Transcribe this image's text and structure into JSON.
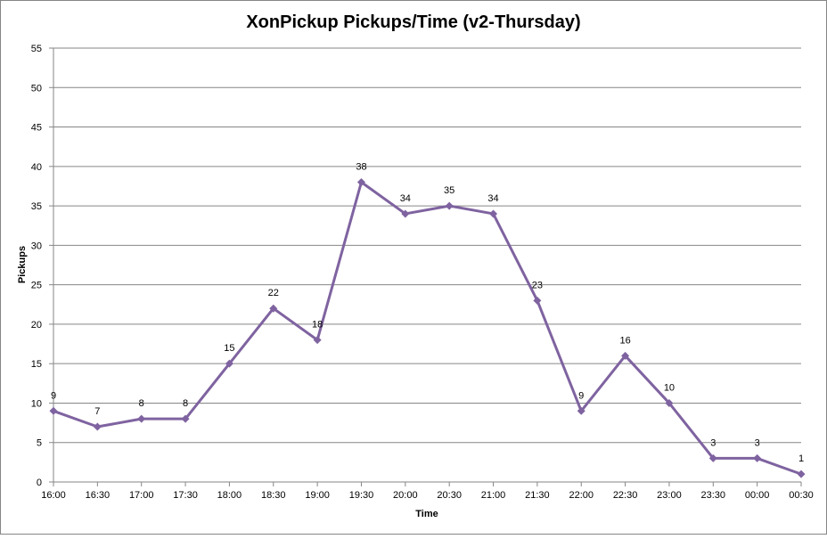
{
  "chart_data": {
    "type": "line",
    "title": "XonPickup Pickups/Time (v2-Thursday)",
    "xlabel": "Time",
    "ylabel": "Pickups",
    "categories": [
      "16:00",
      "16:30",
      "17:00",
      "17:30",
      "18:00",
      "18:30",
      "19:00",
      "19:30",
      "20:00",
      "20:30",
      "21:00",
      "21:30",
      "22:00",
      "22:30",
      "23:00",
      "23:30",
      "00:00",
      "00:30"
    ],
    "series": [
      {
        "values": [
          9,
          7,
          8,
          8,
          15,
          22,
          18,
          38,
          34,
          35,
          34,
          23,
          9,
          16,
          10,
          3,
          3,
          1
        ]
      }
    ],
    "ylim": [
      0,
      55
    ],
    "yticks": [
      0,
      5,
      10,
      15,
      20,
      25,
      30,
      35,
      40,
      45,
      50,
      55
    ],
    "grid": "horizontal",
    "legend": "none",
    "colors": {
      "series": "#7f63a0",
      "grid": "#868686",
      "frame": "#868686"
    }
  }
}
